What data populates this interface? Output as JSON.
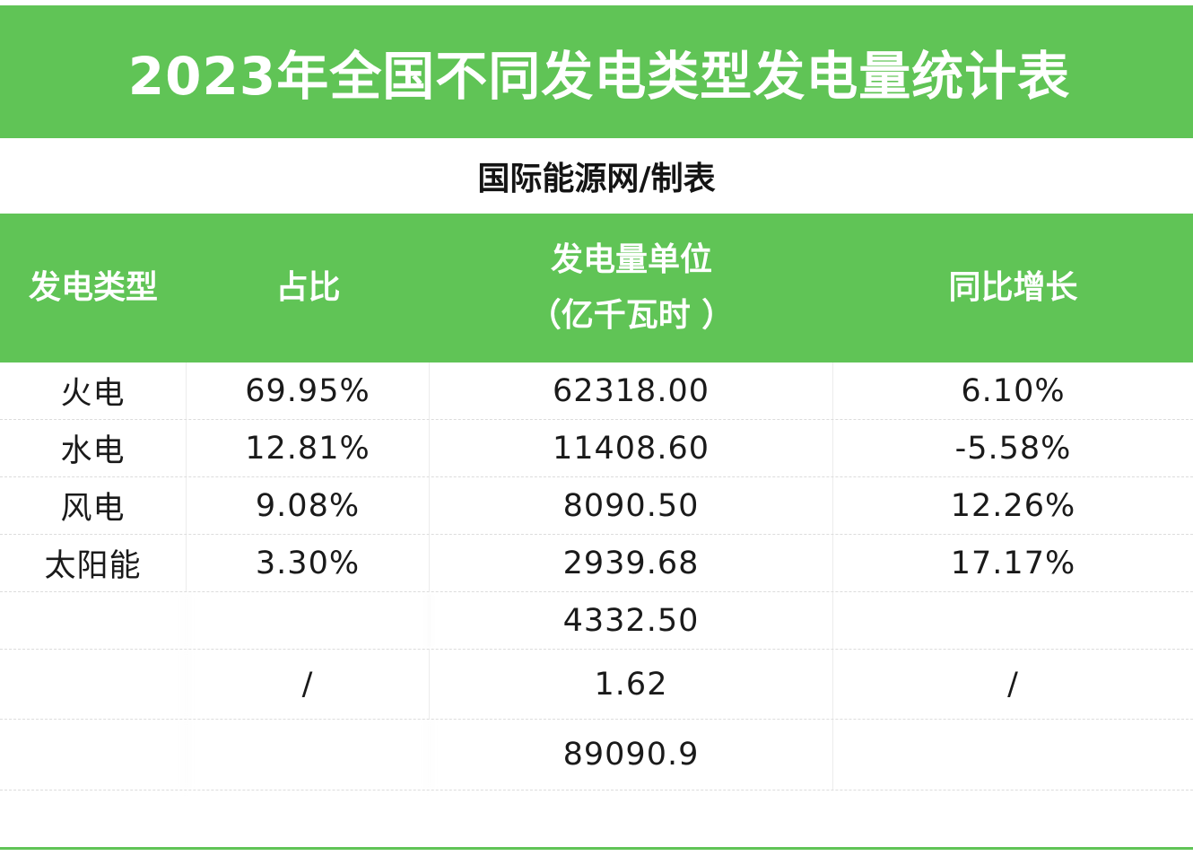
{
  "title": "2023年全国不同发电类型发电量统计表",
  "subtitle": "国际能源网/制表",
  "colors": {
    "accent": "#60c456",
    "header_text": "#ffffff",
    "body_text": "#1a1a1a"
  },
  "table": {
    "headers": {
      "type": "发电类型",
      "share": "占比",
      "output_line1": "发电量单位",
      "output_line2": "（亿千瓦时 ）",
      "growth": "同比增长"
    },
    "rows": [
      {
        "type": "火电",
        "share": "69.95%",
        "output": "62318.00",
        "growth": "6.10%"
      },
      {
        "type": "水电",
        "share": "12.81%",
        "output": "11408.60",
        "growth": "-5.58%"
      },
      {
        "type": "风电",
        "share": "9.08%",
        "output": "8090.50",
        "growth": "12.26%"
      },
      {
        "type": "太阳能",
        "share": "3.30%",
        "output": "2939.68",
        "growth": "17.17%"
      },
      {
        "type": "",
        "share": "",
        "output": "4332.50",
        "growth": ""
      },
      {
        "type": "",
        "share": "/",
        "output": "1.62",
        "growth": "/"
      },
      {
        "type": "",
        "share": "",
        "output": "89090.9",
        "growth": ""
      }
    ]
  }
}
